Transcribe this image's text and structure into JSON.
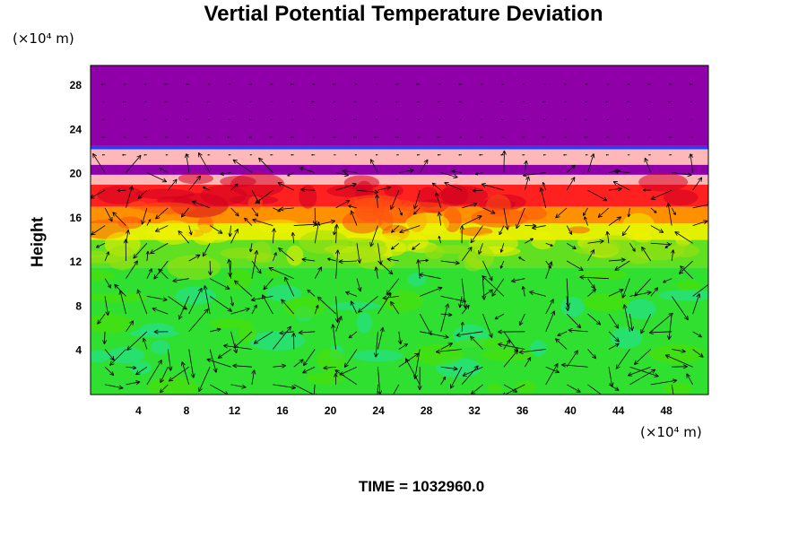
{
  "title": "Vertial Potential Temperature Deviation",
  "time_label": "TIME = 1032960.0",
  "chart_data": {
    "type": "heatmap",
    "title": "Vertial Potential Temperature Deviation",
    "xlabel": "",
    "ylabel": "Height",
    "x_multiplier": "(×10⁴ m)",
    "y_multiplier": "(×10⁴ m)",
    "xlim": [
      0,
      51.5
    ],
    "ylim": [
      0,
      29.8
    ],
    "x_ticks": [
      4,
      8,
      12,
      16,
      20,
      24,
      28,
      32,
      36,
      40,
      44,
      48
    ],
    "y_ticks": [
      4,
      8,
      12,
      16,
      20,
      24,
      28
    ],
    "overlay": "wind vectors (arrows)",
    "layers": [
      {
        "from": 22.5,
        "to": 29.8,
        "color": "#9000a8"
      },
      {
        "from": 22.2,
        "to": 22.5,
        "color": "#2040ff"
      },
      {
        "from": 20.8,
        "to": 22.2,
        "color": "#ffb8b8"
      },
      {
        "from": 19.9,
        "to": 20.8,
        "color": "#9000a8"
      },
      {
        "from": 19.0,
        "to": 19.9,
        "color": "#ffb8b8"
      },
      {
        "from": 17.0,
        "to": 19.0,
        "color": "#ff2020"
      },
      {
        "from": 15.5,
        "to": 17.0,
        "color": "#ff9000"
      },
      {
        "from": 14.0,
        "to": 15.5,
        "color": "#e0f000"
      },
      {
        "from": 11.5,
        "to": 14.0,
        "color": "#60e020"
      },
      {
        "from": 0.0,
        "to": 11.5,
        "color": "#30e030"
      }
    ]
  }
}
